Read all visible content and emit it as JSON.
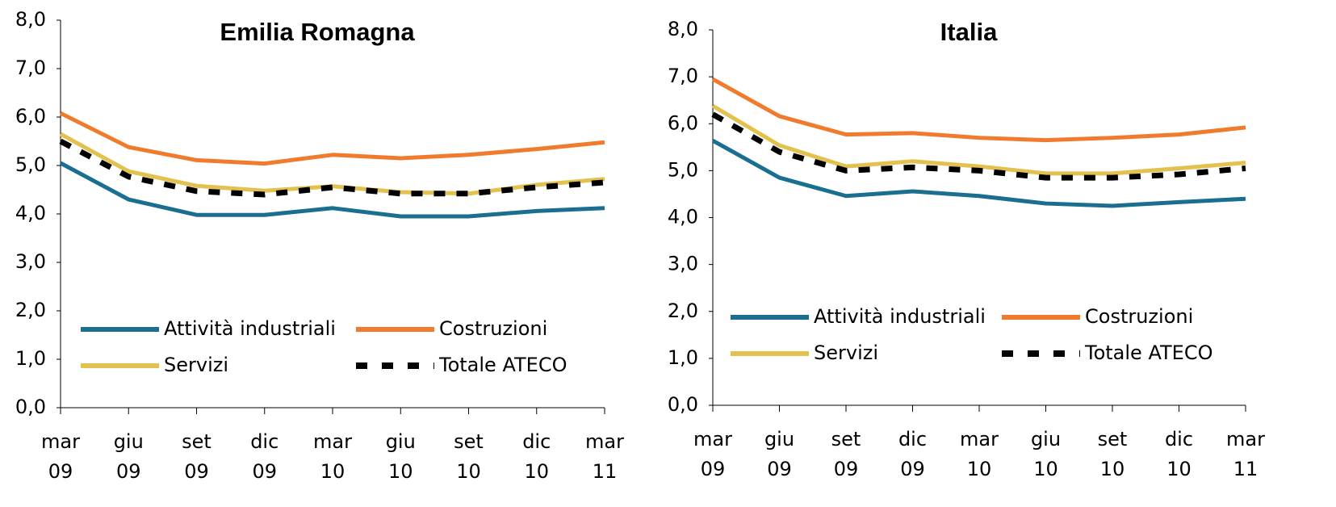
{
  "chart_data": [
    {
      "type": "line",
      "title": "Emilia Romagna",
      "categories": [
        "mar 09",
        "giu 09",
        "set 09",
        "dic 09",
        "mar 10",
        "giu 10",
        "set 10",
        "dic 10",
        "mar 11"
      ],
      "series": [
        {
          "name": "Attività industriali",
          "color": "#1a6f91",
          "values": [
            5.05,
            4.3,
            3.98,
            3.98,
            4.12,
            3.95,
            3.95,
            4.06,
            4.12
          ]
        },
        {
          "name": "Costruzioni",
          "color": "#f07b2d",
          "values": [
            6.08,
            5.38,
            5.11,
            5.04,
            5.22,
            5.15,
            5.22,
            5.34,
            5.48
          ]
        },
        {
          "name": "Servizi",
          "color": "#e2c14f",
          "values": [
            5.65,
            4.88,
            4.58,
            4.48,
            4.57,
            4.45,
            4.42,
            4.6,
            4.72
          ]
        },
        {
          "name": "Totale ATECO",
          "color": "#000000",
          "dashed": true,
          "values": [
            5.5,
            4.77,
            4.47,
            4.4,
            4.55,
            4.42,
            4.42,
            4.55,
            4.65
          ]
        }
      ],
      "ylim": [
        0,
        8
      ],
      "yticks": [
        {
          "value": 0,
          "label": "0,0"
        },
        {
          "value": 1,
          "label": "1,0"
        },
        {
          "value": 2,
          "label": "2,0"
        },
        {
          "value": 3,
          "label": "3,0"
        },
        {
          "value": 4,
          "label": "4,0"
        },
        {
          "value": 5,
          "label": "5,0"
        },
        {
          "value": 6,
          "label": "6,0"
        },
        {
          "value": 7,
          "label": "7,0"
        },
        {
          "value": 8,
          "label": "8,0"
        }
      ]
    },
    {
      "type": "line",
      "title": "Italia",
      "categories": [
        "mar 09",
        "giu 09",
        "set 09",
        "dic 09",
        "mar 10",
        "giu 10",
        "set 10",
        "dic 10",
        "mar 11"
      ],
      "series": [
        {
          "name": "Attività industriali",
          "color": "#1a6f91",
          "values": [
            5.64,
            4.85,
            4.46,
            4.56,
            4.46,
            4.3,
            4.25,
            4.33,
            4.4
          ]
        },
        {
          "name": "Costruzioni",
          "color": "#f07b2d",
          "values": [
            6.95,
            6.16,
            5.77,
            5.8,
            5.7,
            5.65,
            5.7,
            5.77,
            5.92
          ]
        },
        {
          "name": "Servizi",
          "color": "#e2c14f",
          "values": [
            6.38,
            5.54,
            5.09,
            5.2,
            5.09,
            4.94,
            4.94,
            5.05,
            5.17
          ]
        },
        {
          "name": "Totale ATECO",
          "color": "#000000",
          "dashed": true,
          "values": [
            6.2,
            5.4,
            5.0,
            5.07,
            5.0,
            4.85,
            4.85,
            4.92,
            5.05
          ]
        }
      ],
      "ylim": [
        0,
        8
      ],
      "yticks": [
        {
          "value": 0,
          "label": "0,0"
        },
        {
          "value": 1,
          "label": "1,0"
        },
        {
          "value": 2,
          "label": "2,0"
        },
        {
          "value": 3,
          "label": "3,0"
        },
        {
          "value": 4,
          "label": "4,0"
        },
        {
          "value": 5,
          "label": "5,0"
        },
        {
          "value": 6,
          "label": "6,0"
        },
        {
          "value": 7,
          "label": "7,0"
        },
        {
          "value": 8,
          "label": "8,0"
        }
      ]
    }
  ]
}
